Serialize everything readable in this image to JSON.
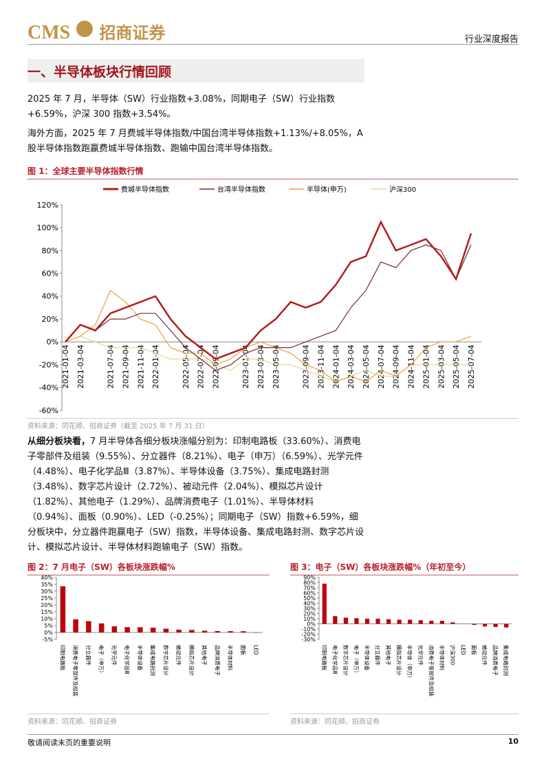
{
  "header": {
    "brand": "CMS",
    "brand_cn": "招商证券",
    "doc_type": "行业深度报告"
  },
  "section_title": "一、半导体板块行情回顾",
  "paragraphs": [
    "2025 年 7 月，半导体（SW）行业指数+3.08%，同期电子（SW）行业指数+6.59%，沪深 300 指数+3.54%。",
    "海外方面，2025 年 7 月费城半导体指数/中国台湾半导体指数+1.13%/+8.05%，A 股半导体指数跑赢费城半导体指数、跑输中国台湾半导体指数。"
  ],
  "analysis": {
    "lead": "从细分板块看，",
    "text": "7 月半导体各细分板块涨幅分别为：印制电路板（33.60%）、消费电子零部件及组装（9.55%）、分立器件（8.21%）、电子（申万）（6.59%）、光学元件（4.48%）、电子化学品Ⅲ（3.87%）、半导体设备（3.75%）、集成电路封测（3.48%）、数字芯片设计（2.72%）、被动元件（2.04%）、模拟芯片设计（1.82%）、其他电子（1.29%）、品牌消费电子（1.01%）、半导体材料（0.94%）、面板（0.90%）、LED（-0.25%）；同期电子（SW）指数+6.59%，细分板块中，分立器件跑赢电子（SW）指数，半导体设备、集成电路封测、数字芯片设计、模拟芯片设计、半导体材料跑输电子（SW）指数。"
  },
  "chart_data": [
    {
      "type": "line",
      "title": "图 1：全球主要半导体指数行情",
      "source": "资料来源：同花顺、招商证券（截至 2025 年 7 月 31 日）",
      "categories": [
        "2021-01-04",
        "2021-03-04",
        null,
        "2021-07-04",
        "2021-09-04",
        "2021-11-04",
        "2022-01-04",
        null,
        "2022-05-04",
        "2022-07-04",
        "2022-09-04",
        null,
        "2023-01-04",
        "2023-03-04",
        "2023-05-04",
        null,
        "2023-09-04",
        "2023-11-04",
        "2024-01-04",
        "2024-03-04",
        "2024-05-04",
        "2024-07-04",
        "2024-09-04",
        "2024-11-04",
        "2025-01-04",
        "2025-03-04",
        "2025-05-04",
        "2025-07-04"
      ],
      "series": [
        {
          "name": "费城半导体指数",
          "color": "#b01c1c",
          "values": [
            0,
            15,
            10,
            25,
            30,
            35,
            40,
            20,
            5,
            -5,
            -15,
            -10,
            -5,
            10,
            20,
            35,
            30,
            35,
            50,
            70,
            75,
            105,
            80,
            85,
            90,
            75,
            55,
            95
          ]
        },
        {
          "name": "台湾半导体指数",
          "color": "#7a2a2a",
          "values": [
            0,
            15,
            10,
            20,
            20,
            25,
            25,
            10,
            -5,
            -15,
            -25,
            -20,
            -10,
            -5,
            -5,
            -5,
            0,
            5,
            10,
            30,
            45,
            70,
            65,
            80,
            85,
            80,
            55,
            85
          ]
        },
        {
          "name": "半导体(申万)",
          "color": "#e8a040",
          "values": [
            0,
            5,
            15,
            45,
            35,
            20,
            15,
            -5,
            -10,
            -10,
            -20,
            -15,
            -5,
            0,
            -5,
            -10,
            -20,
            -25,
            -35,
            -30,
            -35,
            -25,
            -30,
            -20,
            -5,
            0,
            0,
            5
          ]
        },
        {
          "name": "沪深300",
          "color": "#e2d98e",
          "values": [
            0,
            5,
            0,
            -5,
            -5,
            -5,
            -10,
            -15,
            -15,
            -15,
            -20,
            -25,
            -15,
            -15,
            -20,
            -20,
            -25,
            -30,
            -35,
            -30,
            -25,
            -30,
            -30,
            -20,
            -20,
            -20,
            -20,
            -20
          ]
        }
      ],
      "ylim": [
        -60,
        120
      ],
      "yticks": [
        {
          "value": -60,
          "label": "-60%"
        },
        {
          "value": -40,
          "label": "-40%"
        },
        {
          "value": -20,
          "label": "-20%"
        },
        {
          "value": 0,
          "label": "0%"
        },
        {
          "value": 20,
          "label": "20%"
        },
        {
          "value": 40,
          "label": "40%"
        },
        {
          "value": 60,
          "label": "60%"
        },
        {
          "value": 80,
          "label": "80%"
        },
        {
          "value": 100,
          "label": "100%"
        },
        {
          "value": 120,
          "label": "120%"
        }
      ]
    },
    {
      "type": "bar",
      "title": "图 2：7 月电子（SW）各板块涨跌幅%",
      "source": "资料来源：同花顺、招商证券",
      "color": "#c0000b",
      "categories": [
        "印制电路板",
        "消费电子零部件及组装",
        "分立器件",
        "电子（申万）",
        "光学元件",
        "电子化学品Ⅲ",
        "半导体设备",
        "集成电路封测",
        "数字芯片设计",
        "被动元件",
        "模拟芯片设计",
        "其他电子",
        "品牌消费电子",
        "半导体材料",
        "面板",
        "LED"
      ],
      "values": [
        33.6,
        9.55,
        8.21,
        6.59,
        4.48,
        3.87,
        3.75,
        3.48,
        2.72,
        2.04,
        1.82,
        1.29,
        1.01,
        0.94,
        0.9,
        -0.25
      ],
      "ylim": [
        -5,
        40
      ],
      "yticks": [
        {
          "value": -5,
          "label": "-5%"
        },
        {
          "value": 0,
          "label": "0%"
        },
        {
          "value": 5,
          "label": "5%"
        },
        {
          "value": 10,
          "label": "10%"
        },
        {
          "value": 15,
          "label": "15%"
        },
        {
          "value": 20,
          "label": "20%"
        },
        {
          "value": 25,
          "label": "25%"
        },
        {
          "value": 30,
          "label": "30%"
        },
        {
          "value": 35,
          "label": "35%"
        },
        {
          "value": 40,
          "label": "40%"
        }
      ]
    },
    {
      "type": "bar",
      "title": "图 3：电子（SW）各板块涨跌幅%（年初至今）",
      "source": "资料来源：同花顺、招商证券",
      "color": "#c0000b",
      "categories": [
        "印制电路板",
        "电子化学品Ⅲ",
        "数字芯片设计",
        "电子（申万）",
        "半导体设备",
        "分立器件",
        "其他电子",
        "模拟芯片设计",
        "半导体（申万）",
        "光学元件",
        "消费电子零部件及组装",
        "半导体材料",
        "沪深300",
        "LED",
        "面板",
        "被动元件",
        "品牌消费电子",
        "集成电路封测"
      ],
      "values": [
        78,
        15,
        12,
        11,
        10,
        10,
        9,
        8,
        8,
        7,
        6,
        6,
        3,
        0,
        -2,
        -5,
        -6,
        -7
      ],
      "ylim": [
        -30,
        90
      ],
      "yticks": [
        {
          "value": -30,
          "label": "-30%"
        },
        {
          "value": -20,
          "label": "-20%"
        },
        {
          "value": -10,
          "label": "-10%"
        },
        {
          "value": 0,
          "label": "0%"
        },
        {
          "value": 10,
          "label": "10%"
        },
        {
          "value": 20,
          "label": "20%"
        },
        {
          "value": 30,
          "label": "30%"
        },
        {
          "value": 40,
          "label": "40%"
        },
        {
          "value": 50,
          "label": "50%"
        },
        {
          "value": 60,
          "label": "60%"
        },
        {
          "value": 70,
          "label": "70%"
        },
        {
          "value": 80,
          "label": "80%"
        },
        {
          "value": 90,
          "label": "90%"
        }
      ]
    }
  ],
  "footer": {
    "note": "敬请阅读末页的重要说明",
    "page": "10"
  }
}
